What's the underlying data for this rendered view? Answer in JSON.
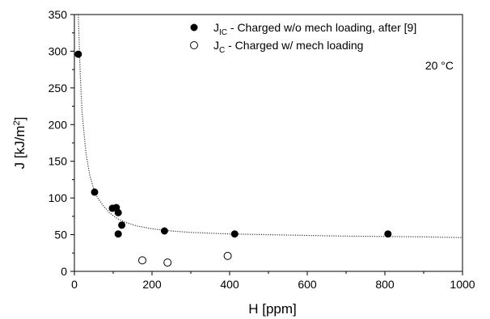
{
  "chart_data": {
    "type": "scatter",
    "xlabel": "H [ppm]",
    "ylabel": "J [kJ/m2]",
    "xlim": [
      0,
      1000
    ],
    "ylim": [
      0,
      350
    ],
    "xticks": [
      0,
      200,
      400,
      600,
      800,
      1000
    ],
    "yticks": [
      0,
      50,
      100,
      150,
      200,
      250,
      300,
      350
    ],
    "annotation": "20 °C",
    "grid": false,
    "legend_position": "top-right",
    "series": [
      {
        "name": "J_IC - Charged w/o mech loading, after [9]",
        "legend_main": "J",
        "legend_sub": "IC",
        "legend_rest": " - Charged w/o mech loading, after [9]",
        "marker": "filled-circle",
        "color": "#000000",
        "points": [
          [
            10,
            296
          ],
          [
            52,
            108
          ],
          [
            98,
            86
          ],
          [
            108,
            87
          ],
          [
            113,
            80
          ],
          [
            113,
            51
          ],
          [
            122,
            63
          ],
          [
            232,
            55
          ],
          [
            413,
            51
          ],
          [
            808,
            51
          ]
        ]
      },
      {
        "name": "J_C - Charged w/ mech loading",
        "legend_main": "J",
        "legend_sub": "C",
        "legend_rest": " - Charged w/ mech loading",
        "marker": "open-circle",
        "color": "#000000",
        "points": [
          [
            175,
            15
          ],
          [
            240,
            12
          ],
          [
            395,
            21
          ]
        ]
      }
    ],
    "fit_curve": {
      "style": "dotted",
      "points": [
        [
          10,
          350
        ],
        [
          15,
          270
        ],
        [
          20,
          215
        ],
        [
          30,
          160
        ],
        [
          40,
          130
        ],
        [
          50,
          112
        ],
        [
          60,
          100
        ],
        [
          75,
          89
        ],
        [
          90,
          80
        ],
        [
          110,
          72
        ],
        [
          130,
          67
        ],
        [
          160,
          62
        ],
        [
          200,
          58
        ],
        [
          250,
          55
        ],
        [
          300,
          53
        ],
        [
          400,
          51
        ],
        [
          500,
          50
        ],
        [
          600,
          49
        ],
        [
          700,
          48
        ],
        [
          800,
          47.5
        ],
        [
          900,
          47
        ],
        [
          1000,
          46
        ]
      ]
    }
  }
}
